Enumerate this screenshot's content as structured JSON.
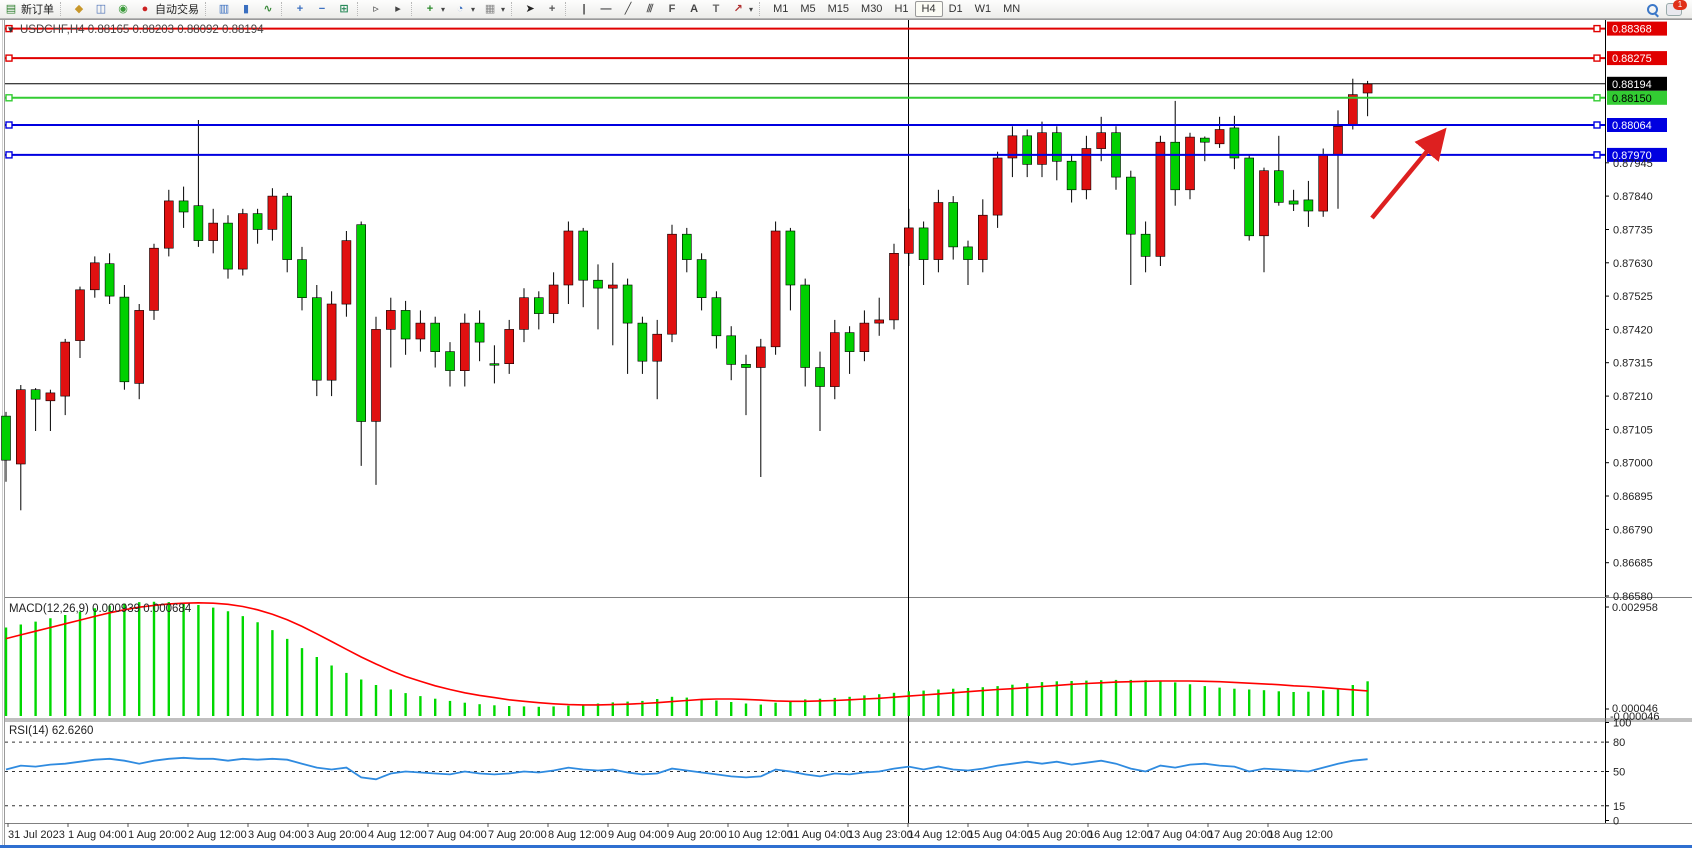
{
  "toolbar": {
    "left_buttons": [
      {
        "name": "new-order-button",
        "glyph": "newdoc",
        "label": "新订单"
      },
      {
        "name": "separator",
        "glyph": "sep",
        "label": ""
      },
      {
        "name": "styler-button",
        "glyph": "bucket",
        "label": ""
      },
      {
        "name": "profile-button",
        "glyph": "window",
        "label": ""
      },
      {
        "name": "signals-button",
        "glyph": "signal",
        "label": ""
      },
      {
        "name": "autotrade-button",
        "glyph": "autodot",
        "label": "自动交易"
      },
      {
        "name": "separator",
        "glyph": "sep",
        "label": ""
      },
      {
        "name": "bar-chart-button",
        "glyph": "bars",
        "label": ""
      },
      {
        "name": "candle-chart-button",
        "glyph": "candle",
        "label": ""
      },
      {
        "name": "line-chart-button",
        "glyph": "line",
        "label": ""
      },
      {
        "name": "separator",
        "glyph": "sep",
        "label": ""
      },
      {
        "name": "zoom-in-button",
        "glyph": "zoomin",
        "label": ""
      },
      {
        "name": "zoom-out-button",
        "glyph": "zoomout",
        "label": ""
      },
      {
        "name": "tile-windows-button",
        "glyph": "tile",
        "label": ""
      },
      {
        "name": "separator",
        "glyph": "sep",
        "label": ""
      },
      {
        "name": "scroll-to-end-button",
        "glyph": "playr",
        "label": ""
      },
      {
        "name": "chart-shift-button",
        "glyph": "shiftr",
        "label": ""
      },
      {
        "name": "separator",
        "glyph": "sep",
        "label": ""
      },
      {
        "name": "indicators-button",
        "glyph": "indplus",
        "label": "",
        "dropdown": true
      },
      {
        "name": "periods-button",
        "glyph": "clock",
        "label": "",
        "dropdown": true
      },
      {
        "name": "templates-button",
        "glyph": "template",
        "label": "",
        "dropdown": true
      },
      {
        "name": "separator",
        "glyph": "sep",
        "label": ""
      },
      {
        "name": "cursor-button",
        "glyph": "cursor",
        "label": ""
      },
      {
        "name": "crosshair-button",
        "glyph": "cross",
        "label": ""
      },
      {
        "name": "separator",
        "glyph": "sep",
        "label": ""
      },
      {
        "name": "vertical-line-button",
        "glyph": "vline",
        "label": ""
      },
      {
        "name": "horizontal-line-button",
        "glyph": "hline",
        "label": ""
      },
      {
        "name": "trendline-button",
        "glyph": "trend",
        "label": ""
      },
      {
        "name": "equidistant-channel-button",
        "glyph": "channelE",
        "label": ""
      },
      {
        "name": "fibonacci-button",
        "glyph": "fiboF",
        "label": ""
      },
      {
        "name": "text-button",
        "glyph": "textA",
        "label": ""
      },
      {
        "name": "text-label-button",
        "glyph": "labelT",
        "label": ""
      },
      {
        "name": "arrows-button",
        "glyph": "shapes",
        "label": "",
        "dropdown": true
      },
      {
        "name": "separator",
        "glyph": "sep",
        "label": ""
      }
    ],
    "timeframes": [
      "M1",
      "M5",
      "M15",
      "M30",
      "H1",
      "H4",
      "D1",
      "W1",
      "MN"
    ],
    "active_timeframe": "H4",
    "chat_badge": "1"
  },
  "chart": {
    "title_symbol": "USDCHF,H4",
    "title_ohlc": "0.88165 0.88203 0.88092 0.88194",
    "macd_label": "MACD(12,26,9) 0.000939 0.000684",
    "rsi_label": "RSI(14) 62.6260"
  },
  "chart_data": {
    "type": "candlestick",
    "symbol": "USDCHF",
    "timeframe": "H4",
    "bull_color": "#e01010",
    "bear_color": "#00d000",
    "note": "red candles = up, lime candles = down in this color scheme",
    "price_axis": {
      "max": 0.88395,
      "min": 0.8658,
      "ticks": [
        "0.87945",
        "0.87840",
        "0.87735",
        "0.87630",
        "0.87525",
        "0.87420",
        "0.87315",
        "0.87210",
        "0.87105",
        "0.87000",
        "0.86895",
        "0.86790",
        "0.86685",
        "0.86580"
      ]
    },
    "price_lines": [
      {
        "price": 0.88368,
        "label": "0.88368",
        "color": "#e00000",
        "text": "#ffffff",
        "kind": "resistance"
      },
      {
        "price": 0.88275,
        "label": "0.88275",
        "color": "#e00000",
        "text": "#ffffff",
        "kind": "resistance"
      },
      {
        "price": 0.88194,
        "label": "0.88194",
        "color": "#000000",
        "text": "#ffffff",
        "kind": "current-price"
      },
      {
        "price": 0.8815,
        "label": "0.88150",
        "color": "#33cc33",
        "text": "#000000",
        "kind": "level"
      },
      {
        "price": 0.88064,
        "label": "0.88064",
        "color": "#0000e0",
        "text": "#ffffff",
        "kind": "support"
      },
      {
        "price": 0.8797,
        "label": "0.87970",
        "color": "#0000e0",
        "text": "#ffffff",
        "kind": "support"
      }
    ],
    "vertical_line_time": "13 Aug 23:00",
    "arrow_annotation": {
      "color": "#dd2020",
      "direction": "up-right"
    },
    "candles": [
      [
        0.87147,
        0.8716,
        0.8694,
        0.87008,
        "g"
      ],
      [
        0.86996,
        0.87245,
        0.8685,
        0.8723,
        "r"
      ],
      [
        0.8723,
        0.87235,
        0.871,
        0.872,
        "g"
      ],
      [
        0.87195,
        0.8723,
        0.871,
        0.8722,
        "r"
      ],
      [
        0.8721,
        0.8739,
        0.8715,
        0.8738,
        "r"
      ],
      [
        0.87385,
        0.87555,
        0.8733,
        0.87545,
        "r"
      ],
      [
        0.87545,
        0.8765,
        0.8752,
        0.8763,
        "r"
      ],
      [
        0.87627,
        0.8766,
        0.875,
        0.87525,
        "g"
      ],
      [
        0.87522,
        0.8756,
        0.8723,
        0.87255,
        "g"
      ],
      [
        0.8725,
        0.875,
        0.872,
        0.8748,
        "r"
      ],
      [
        0.8748,
        0.8769,
        0.8745,
        0.87676,
        "r"
      ],
      [
        0.87676,
        0.8786,
        0.8765,
        0.87825,
        "r"
      ],
      [
        0.87825,
        0.8787,
        0.8774,
        0.8779,
        "g"
      ],
      [
        0.8781,
        0.8808,
        0.8768,
        0.877,
        "g"
      ],
      [
        0.877,
        0.878,
        0.8766,
        0.87755,
        "r"
      ],
      [
        0.87755,
        0.8778,
        0.8758,
        0.8761,
        "g"
      ],
      [
        0.8761,
        0.878,
        0.8759,
        0.87785,
        "r"
      ],
      [
        0.87785,
        0.878,
        0.8769,
        0.87735,
        "g"
      ],
      [
        0.87735,
        0.87865,
        0.877,
        0.8784,
        "r"
      ],
      [
        0.8784,
        0.8785,
        0.876,
        0.8764,
        "g"
      ],
      [
        0.8764,
        0.8768,
        0.8748,
        0.8752,
        "g"
      ],
      [
        0.8752,
        0.8756,
        0.8721,
        0.8726,
        "g"
      ],
      [
        0.8726,
        0.8754,
        0.8721,
        0.875,
        "r"
      ],
      [
        0.875,
        0.8773,
        0.8746,
        0.877,
        "r"
      ],
      [
        0.8775,
        0.8776,
        0.8699,
        0.8713,
        "g"
      ],
      [
        0.8713,
        0.8746,
        0.8693,
        0.8742,
        "r"
      ],
      [
        0.8742,
        0.8752,
        0.873,
        0.8748,
        "r"
      ],
      [
        0.8748,
        0.8751,
        0.8734,
        0.8739,
        "g"
      ],
      [
        0.8739,
        0.8748,
        0.8735,
        0.8744,
        "r"
      ],
      [
        0.8744,
        0.8746,
        0.873,
        0.8735,
        "g"
      ],
      [
        0.8735,
        0.8738,
        0.8724,
        0.8729,
        "g"
      ],
      [
        0.8729,
        0.8747,
        0.8724,
        0.8744,
        "r"
      ],
      [
        0.8744,
        0.8748,
        0.8732,
        0.8738,
        "g"
      ],
      [
        0.8731,
        0.8737,
        0.8725,
        0.87312,
        "g"
      ],
      [
        0.87312,
        0.8745,
        0.8728,
        0.8742,
        "r"
      ],
      [
        0.8742,
        0.8755,
        0.8738,
        0.8752,
        "r"
      ],
      [
        0.8752,
        0.8754,
        0.8742,
        0.8747,
        "g"
      ],
      [
        0.8747,
        0.876,
        0.8744,
        0.8756,
        "r"
      ],
      [
        0.8756,
        0.8776,
        0.875,
        0.8773,
        "r"
      ],
      [
        0.8773,
        0.8774,
        0.8749,
        0.87575,
        "g"
      ],
      [
        0.87575,
        0.87625,
        0.8742,
        0.8755,
        "g"
      ],
      [
        0.8755,
        0.8763,
        0.8737,
        0.8756,
        "r"
      ],
      [
        0.8756,
        0.8758,
        0.8728,
        0.8744,
        "g"
      ],
      [
        0.8744,
        0.8746,
        0.8728,
        0.8732,
        "g"
      ],
      [
        0.8732,
        0.8745,
        0.872,
        0.87405,
        "r"
      ],
      [
        0.87405,
        0.8775,
        0.8738,
        0.8772,
        "r"
      ],
      [
        0.8772,
        0.8774,
        0.876,
        0.8764,
        "g"
      ],
      [
        0.8764,
        0.8766,
        0.8748,
        0.8752,
        "g"
      ],
      [
        0.8752,
        0.8754,
        0.8736,
        0.874,
        "g"
      ],
      [
        0.874,
        0.8743,
        0.8726,
        0.8731,
        "g"
      ],
      [
        0.8731,
        0.8734,
        0.8715,
        0.873,
        "g"
      ],
      [
        0.873,
        0.8739,
        0.86955,
        0.87365,
        "r"
      ],
      [
        0.87365,
        0.8776,
        0.8734,
        0.8773,
        "r"
      ],
      [
        0.8773,
        0.8774,
        0.8748,
        0.8756,
        "g"
      ],
      [
        0.8756,
        0.8758,
        0.8724,
        0.873,
        "g"
      ],
      [
        0.873,
        0.8735,
        0.871,
        0.8724,
        "g"
      ],
      [
        0.8724,
        0.8745,
        0.872,
        0.8741,
        "r"
      ],
      [
        0.8741,
        0.8743,
        0.8728,
        0.8735,
        "g"
      ],
      [
        0.8735,
        0.8748,
        0.8732,
        0.8744,
        "r"
      ],
      [
        0.8744,
        0.8752,
        0.874,
        0.8745,
        "r"
      ],
      [
        0.8745,
        0.8769,
        0.8742,
        0.8766,
        "r"
      ],
      [
        0.8766,
        0.878,
        0.8762,
        0.8774,
        "r"
      ],
      [
        0.8774,
        0.8776,
        0.8756,
        0.8764,
        "g"
      ],
      [
        0.8764,
        0.8786,
        0.876,
        0.8782,
        "r"
      ],
      [
        0.8782,
        0.8784,
        0.8764,
        0.8768,
        "g"
      ],
      [
        0.8768,
        0.877,
        0.8756,
        0.8764,
        "g"
      ],
      [
        0.8764,
        0.8783,
        0.876,
        0.8778,
        "r"
      ],
      [
        0.8778,
        0.8798,
        0.8774,
        0.8796,
        "r"
      ],
      [
        0.8796,
        0.8806,
        0.879,
        0.8803,
        "r"
      ],
      [
        0.8803,
        0.8805,
        0.879,
        0.8794,
        "g"
      ],
      [
        0.8794,
        0.88075,
        0.879,
        0.8804,
        "r"
      ],
      [
        0.8804,
        0.8806,
        0.8789,
        0.8795,
        "g"
      ],
      [
        0.8795,
        0.8797,
        0.8782,
        0.8786,
        "g"
      ],
      [
        0.8786,
        0.8803,
        0.8783,
        0.8799,
        "r"
      ],
      [
        0.8799,
        0.8809,
        0.8795,
        0.8804,
        "r"
      ],
      [
        0.8804,
        0.8806,
        0.8786,
        0.879,
        "g"
      ],
      [
        0.879,
        0.8792,
        0.8756,
        0.8772,
        "g"
      ],
      [
        0.8772,
        0.8776,
        0.876,
        0.8765,
        "g"
      ],
      [
        0.8765,
        0.8803,
        0.8762,
        0.8801,
        "r"
      ],
      [
        0.8801,
        0.8814,
        0.8781,
        0.8786,
        "g"
      ],
      [
        0.8786,
        0.8804,
        0.8783,
        0.88026,
        "r"
      ],
      [
        0.88023,
        0.88028,
        0.8795,
        0.8801,
        "g"
      ],
      [
        0.88005,
        0.8809,
        0.87992,
        0.8805,
        "r"
      ],
      [
        0.88055,
        0.88093,
        0.87925,
        0.8796,
        "g"
      ],
      [
        0.8796,
        0.8797,
        0.877,
        0.87715,
        "g"
      ],
      [
        0.87715,
        0.8793,
        0.876,
        0.8792,
        "r"
      ],
      [
        0.8792,
        0.8803,
        0.8781,
        0.8782,
        "g"
      ],
      [
        0.87825,
        0.8786,
        0.87793,
        0.87815,
        "g"
      ],
      [
        0.87828,
        0.87888,
        0.87743,
        0.87793,
        "g"
      ],
      [
        0.87793,
        0.8799,
        0.87775,
        0.8797,
        "r"
      ],
      [
        0.8797,
        0.8811,
        0.878,
        0.8806,
        "r"
      ],
      [
        0.88065,
        0.8821,
        0.8805,
        0.8816,
        "r"
      ],
      [
        0.88165,
        0.88203,
        0.88092,
        0.88194,
        "r"
      ]
    ],
    "time_labels": [
      "31 Jul 2023",
      "1 Aug 04:00",
      "1 Aug 20:00",
      "2 Aug 12:00",
      "3 Aug 04:00",
      "3 Aug 20:00",
      "4 Aug 12:00",
      "7 Aug 04:00",
      "7 Aug 20:00",
      "8 Aug 12:00",
      "9 Aug 04:00",
      "9 Aug 20:00",
      "10 Aug 12:00",
      "11 Aug 04:00",
      "13 Aug 23:00",
      "14 Aug 12:00",
      "15 Aug 04:00",
      "15 Aug 20:00",
      "16 Aug 12:00",
      "17 Aug 04:00",
      "17 Aug 20:00",
      "18 Aug 12:00"
    ],
    "macd": {
      "name": "MACD",
      "params": "12,26,9",
      "value_main": "0.000939",
      "value_signal": "0.000684",
      "axis_labels": [
        "0.002958",
        "0.000046",
        "-0.000046"
      ],
      "scale_max": 0.0032,
      "histogram": [
        0.0024,
        0.00248,
        0.00256,
        0.00265,
        0.00274,
        0.00283,
        0.00292,
        0.00299,
        0.00305,
        0.00309,
        0.0031,
        0.00309,
        0.00306,
        0.00301,
        0.00294,
        0.00284,
        0.00271,
        0.00254,
        0.00233,
        0.00209,
        0.00184,
        0.0016,
        0.00137,
        0.00117,
        0.00099,
        0.00084,
        0.00072,
        0.00062,
        0.00054,
        0.00047,
        0.00041,
        0.00036,
        0.00032,
        0.00029,
        0.00027,
        0.00026,
        0.00025,
        0.00026,
        0.00028,
        0.00031,
        0.00034,
        0.00037,
        0.00039,
        0.00041,
        0.00046,
        0.00052,
        0.0005,
        0.00046,
        0.00042,
        0.00038,
        0.00034,
        0.00031,
        0.00036,
        0.00041,
        0.00045,
        0.00047,
        0.00049,
        0.00052,
        0.00056,
        0.00059,
        0.00063,
        0.00067,
        0.00069,
        0.00072,
        0.00074,
        0.00076,
        0.00078,
        0.00081,
        0.00085,
        0.00089,
        0.00092,
        0.00094,
        0.00095,
        0.00096,
        0.00097,
        0.00098,
        0.00098,
        0.00097,
        0.00095,
        0.00091,
        0.00086,
        0.00081,
        0.00077,
        0.00074,
        0.00072,
        0.0007,
        0.00067,
        0.00065,
        0.00066,
        0.0007,
        0.00076,
        0.00084,
        0.00094
      ],
      "signal": [
        0.0021,
        0.0022,
        0.0023,
        0.0024,
        0.0025,
        0.0026,
        0.0027,
        0.0028,
        0.00288,
        0.00295,
        0.003,
        0.00304,
        0.00306,
        0.00307,
        0.00306,
        0.00303,
        0.00297,
        0.00288,
        0.00276,
        0.00261,
        0.00243,
        0.00223,
        0.00202,
        0.00181,
        0.0016,
        0.00141,
        0.00123,
        0.00107,
        0.00094,
        0.00082,
        0.00072,
        0.00063,
        0.00056,
        0.0005,
        0.00044,
        0.0004,
        0.00036,
        0.00033,
        0.00031,
        0.0003,
        0.0003,
        0.00031,
        0.00032,
        0.00034,
        0.00036,
        0.00039,
        0.00042,
        0.00045,
        0.00046,
        0.00046,
        0.00045,
        0.00043,
        0.00041,
        0.0004,
        0.0004,
        0.00041,
        0.00042,
        0.00044,
        0.00046,
        0.00048,
        0.00051,
        0.00054,
        0.00057,
        0.0006,
        0.00063,
        0.00066,
        0.00069,
        0.00072,
        0.00074,
        0.00077,
        0.0008,
        0.00083,
        0.00086,
        0.00088,
        0.0009,
        0.00092,
        0.00093,
        0.00094,
        0.00095,
        0.00095,
        0.00095,
        0.00094,
        0.00093,
        0.00091,
        0.00089,
        0.00087,
        0.00085,
        0.00082,
        0.0008,
        0.00077,
        0.00074,
        0.00071,
        0.00068
      ]
    },
    "rsi": {
      "name": "RSI",
      "params": "14",
      "value": "62.6260",
      "levels": [
        80,
        50,
        15
      ],
      "axis_labels": [
        "100",
        "80",
        "50",
        "15",
        "0"
      ],
      "values": [
        52,
        56,
        55,
        57,
        58,
        60,
        62,
        63,
        61,
        58,
        61,
        63,
        64,
        63,
        63,
        61,
        63,
        62,
        63,
        62,
        58,
        54,
        52,
        54,
        44,
        42,
        48,
        50,
        49,
        48,
        47,
        50,
        48,
        47,
        48,
        50,
        49,
        51,
        54,
        52,
        51,
        52,
        49,
        47,
        48,
        53,
        51,
        49,
        47,
        45,
        44,
        45,
        52,
        50,
        47,
        45,
        48,
        47,
        49,
        50,
        53,
        55,
        52,
        55,
        52,
        51,
        53,
        56,
        58,
        60,
        58,
        60,
        57,
        59,
        61,
        58,
        53,
        50,
        56,
        54,
        57,
        58,
        56,
        55,
        50,
        53,
        52,
        51,
        50,
        54,
        58,
        61,
        62.6
      ]
    }
  }
}
